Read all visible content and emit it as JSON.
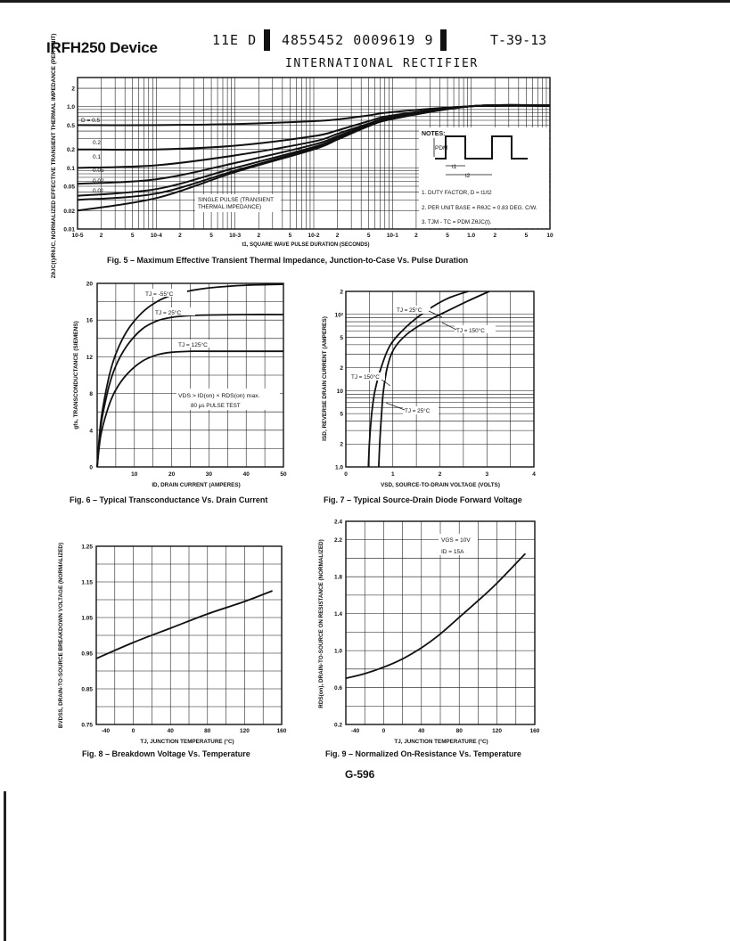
{
  "header": {
    "device": "IRFH250 Device",
    "code_left": "11E D",
    "code_mid": "4855452 0009619 9",
    "code_right": "T-39-13",
    "company": "INTERNATIONAL RECTIFIER"
  },
  "fig5": {
    "caption": "Fig. 5 – Maximum Effective Transient Thermal Impedance, Junction-to-Case Vs. Pulse Duration",
    "ylabel": "ZθJC(t)/RθJC, NORMALIZED EFFECTIVE TRANSIENT THERMAL IMPEDANCE (PER UNIT)",
    "xlabel": "t1, SQUARE WAVE PULSE DURATION (SECONDS)",
    "yticks": [
      "2",
      "1.0",
      "0.5",
      "0.2",
      "0.1",
      "0.05",
      "0.02",
      "0.01"
    ],
    "xticks": [
      "10-5",
      "2",
      "5",
      "10-4",
      "2",
      "5",
      "10-3",
      "2",
      "5",
      "10-2",
      "2",
      "5",
      "10-1",
      "2",
      "5",
      "1.0",
      "2",
      "5",
      "10"
    ],
    "curve_labels": [
      "D = 0.5",
      "0.2",
      "0.1",
      "0.05",
      "0.02",
      "0.01"
    ],
    "single_pulse": [
      "SINGLE PULSE (TRANSIENT",
      "THERMAL IMPEDANCE)"
    ],
    "notes_title": "NOTES:",
    "pdm": "PDM",
    "t1": "t1",
    "t2": "t2",
    "notes": [
      "1. DUTY FACTOR, D = t1/t2",
      "2. PER UNIT BASE = RθJC = 0.83 DEG. C/W.",
      "3. TJM - TC = PDM ZθJC(t)."
    ]
  },
  "fig6": {
    "caption": "Fig. 6 – Typical Transconductance Vs. Drain Current",
    "ylabel": "gfs, TRANSCONDUCTANCE (SIEMENS)",
    "xlabel": "ID, DRAIN CURRENT (AMPERES)",
    "condition": "VDS > ID(on) × RDS(on) max.",
    "condition2": "80 μs PULSE TEST",
    "yticks": [
      "20",
      "16",
      "12",
      "8",
      "4",
      "0"
    ],
    "xticks": [
      "10",
      "20",
      "30",
      "40",
      "50"
    ],
    "labels": [
      "TJ = -55°C",
      "TJ = 25°C",
      "TJ = 125°C"
    ]
  },
  "fig7": {
    "caption": "Fig. 7 – Typical Source-Drain Diode Forward Voltage",
    "ylabel": "ISD, REVERSE DRAIN CURRENT (AMPERES)",
    "xlabel": "VSD, SOURCE-TO-DRAIN VOLTAGE (VOLTS)",
    "yticks": [
      "2",
      "10²",
      "5",
      "2",
      "10",
      "5",
      "2",
      "1.0"
    ],
    "xticks": [
      "0",
      "1",
      "2",
      "3",
      "4"
    ],
    "labels": [
      "TJ = 25°C",
      "TJ = 150°C",
      "TJ = 150°C",
      "TJ = 25°C"
    ]
  },
  "fig8": {
    "caption": "Fig. 8 – Breakdown Voltage Vs. Temperature",
    "ylabel": "BVDSS, DRAIN-TO-SOURCE BREAKDOWN VOLTAGE (NORMALIZED)",
    "xlabel": "TJ, JUNCTION TEMPERATURE (°C)",
    "yticks": [
      "1.25",
      "1.15",
      "1.05",
      "0.95",
      "0.85",
      "0.75"
    ],
    "xticks": [
      "-40",
      "0",
      "40",
      "80",
      "120",
      "160"
    ]
  },
  "fig9": {
    "caption": "Fig. 9 – Normalized On-Resistance Vs. Temperature",
    "ylabel": "RDS(on), DRAIN-TO-SOURCE ON RESISTANCE (NORMALIZED)",
    "xlabel": "TJ, JUNCTION TEMPERATURE (°C)",
    "yticks": [
      "2.4",
      "2.2",
      "1.8",
      "1.4",
      "1.0",
      "0.6",
      "0.2"
    ],
    "xticks": [
      "-40",
      "0",
      "40",
      "80",
      "120",
      "160"
    ],
    "cond1": "VGS = 10V",
    "cond2": "ID = 15A"
  },
  "footer": {
    "page": "G-596"
  },
  "chart_data": [
    {
      "type": "line",
      "title": "Fig. 5 – Maximum Effective Transient Thermal Impedance, Junction-to-Case Vs. Pulse Duration",
      "xlabel": "t1, SQUARE WAVE PULSE DURATION (SECONDS)",
      "ylabel": "ZθJC(t)/RθJC, NORMALIZED EFFECTIVE TRANSIENT THERMAL IMPEDANCE (PER UNIT)",
      "xscale": "log",
      "yscale": "log",
      "xlim": [
        1e-05,
        10
      ],
      "ylim": [
        0.01,
        3
      ],
      "grid": true,
      "x": [
        1e-05,
        0.0001,
        0.001,
        0.01,
        0.02,
        0.05,
        0.1,
        1,
        10
      ],
      "series": [
        {
          "name": "D = 0.5",
          "values": [
            0.5,
            0.5,
            0.52,
            0.58,
            0.62,
            0.72,
            0.82,
            1.02,
            1.05
          ]
        },
        {
          "name": "0.2",
          "values": [
            0.2,
            0.2,
            0.23,
            0.33,
            0.41,
            0.58,
            0.72,
            1.02,
            1.05
          ]
        },
        {
          "name": "0.1",
          "values": [
            0.1,
            0.11,
            0.16,
            0.27,
            0.36,
            0.53,
            0.68,
            1.02,
            1.05
          ]
        },
        {
          "name": "0.05",
          "values": [
            0.055,
            0.065,
            0.12,
            0.24,
            0.33,
            0.51,
            0.66,
            1.02,
            1.05
          ]
        },
        {
          "name": "0.02",
          "values": [
            0.035,
            0.045,
            0.1,
            0.22,
            0.31,
            0.5,
            0.65,
            1.02,
            1.05
          ]
        },
        {
          "name": "0.01",
          "values": [
            0.03,
            0.038,
            0.09,
            0.21,
            0.3,
            0.49,
            0.64,
            1.02,
            1.05
          ]
        },
        {
          "name": "SINGLE PULSE (TRANSIENT THERMAL IMPEDANCE)",
          "values": [
            0.02,
            0.032,
            0.085,
            0.2,
            0.29,
            0.48,
            0.63,
            1.02,
            1.05
          ]
        }
      ]
    },
    {
      "type": "line",
      "title": "Fig. 6 – Typical Transconductance Vs. Drain Current",
      "xlabel": "ID, DRAIN CURRENT (AMPERES)",
      "ylabel": "gfs, TRANSCONDUCTANCE (SIEMENS)",
      "xlim": [
        0,
        50
      ],
      "ylim": [
        0,
        20
      ],
      "grid": true,
      "series": [
        {
          "name": "TJ = -55°C",
          "x": [
            0,
            1,
            3,
            5,
            8,
            12,
            16,
            20,
            25,
            30,
            40,
            50
          ],
          "values": [
            0,
            5,
            9.5,
            12.3,
            14.8,
            16.8,
            18.0,
            18.7,
            19.2,
            19.5,
            19.8,
            19.9
          ]
        },
        {
          "name": "TJ = 25°C",
          "x": [
            0,
            1,
            3,
            5,
            8,
            12,
            16,
            20,
            25,
            30,
            40,
            50
          ],
          "values": [
            0,
            4.5,
            8.5,
            11.0,
            13.2,
            15.0,
            15.9,
            16.3,
            16.5,
            16.55,
            16.6,
            16.6
          ]
        },
        {
          "name": "TJ = 125°C",
          "x": [
            0,
            1,
            3,
            5,
            8,
            12,
            16,
            20,
            25,
            30,
            40,
            50
          ],
          "values": [
            0,
            3.5,
            6.5,
            8.4,
            10.1,
            11.5,
            12.2,
            12.5,
            12.6,
            12.6,
            12.6,
            12.6
          ]
        }
      ]
    },
    {
      "type": "line",
      "title": "Fig. 7 – Typical Source-Drain Diode Forward Voltage",
      "xlabel": "VSD, SOURCE-TO-DRAIN VOLTAGE (VOLTS)",
      "ylabel": "ISD, REVERSE DRAIN CURRENT (AMPERES)",
      "xlim": [
        0,
        4
      ],
      "ylim": [
        1,
        200
      ],
      "yscale": "log",
      "grid": true,
      "series": [
        {
          "name": "TJ = 150°C",
          "x": [
            0.48,
            0.5,
            0.55,
            0.62,
            0.75,
            0.95,
            1.3,
            1.7,
            2.15,
            2.6
          ],
          "values": [
            1,
            2,
            5,
            10,
            20,
            40,
            70,
            110,
            160,
            200
          ]
        },
        {
          "name": "TJ = 25°C",
          "x": [
            0.7,
            0.72,
            0.76,
            0.8,
            0.88,
            1.02,
            1.3,
            1.7,
            2.15,
            2.6,
            3.05
          ],
          "values": [
            1,
            2,
            5,
            10,
            20,
            35,
            55,
            80,
            110,
            150,
            200
          ]
        }
      ]
    },
    {
      "type": "line",
      "title": "Fig. 8 – Breakdown Voltage Vs. Temperature",
      "xlabel": "TJ, JUNCTION TEMPERATURE (°C)",
      "ylabel": "BVDSS, DRAIN-TO-SOURCE BREAKDOWN VOLTAGE (NORMALIZED)",
      "xlim": [
        -40,
        160
      ],
      "ylim": [
        0.75,
        1.25
      ],
      "grid": true,
      "series": [
        {
          "name": "BVDSS",
          "x": [
            -40,
            0,
            40,
            80,
            120,
            150
          ],
          "values": [
            0.935,
            0.98,
            1.02,
            1.06,
            1.095,
            1.125
          ]
        }
      ]
    },
    {
      "type": "line",
      "title": "Fig. 9 – Normalized On-Resistance Vs. Temperature",
      "xlabel": "TJ, JUNCTION TEMPERATURE (°C)",
      "ylabel": "RDS(on), DRAIN-TO-SOURCE ON RESISTANCE (NORMALIZED)",
      "xlim": [
        -40,
        160
      ],
      "ylim": [
        0.2,
        2.4
      ],
      "grid": true,
      "series": [
        {
          "name": "RDS(on)",
          "x": [
            -40,
            -20,
            0,
            20,
            40,
            60,
            80,
            100,
            120,
            150
          ],
          "values": [
            0.7,
            0.75,
            0.82,
            0.91,
            1.03,
            1.18,
            1.36,
            1.54,
            1.73,
            2.05
          ]
        }
      ]
    }
  ]
}
